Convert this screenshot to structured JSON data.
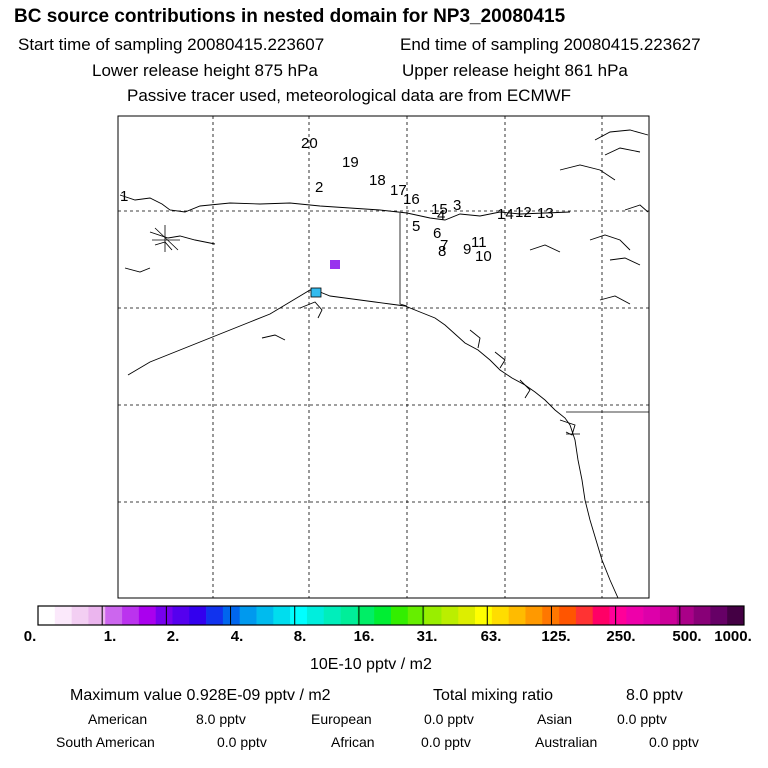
{
  "header": {
    "title": "BC  source contributions in nested domain for NP3_20080415",
    "start_time": "Start time of sampling 20080415.223607",
    "end_time": "End time of sampling 20080415.223627",
    "lower_height": "Lower release height  875 hPa",
    "upper_height": "Upper release height  861 hPa",
    "tracer_note": "Passive tracer used, meteorological data are from ECMWF"
  },
  "trajectory_labels": [
    "1",
    "2",
    "3",
    "4",
    "5",
    "6",
    "7",
    "8",
    "9",
    "10",
    "11",
    "12",
    "13",
    "14",
    "15",
    "16",
    "17",
    "18",
    "19",
    "20"
  ],
  "colorbar": {
    "tick_labels": [
      "0.",
      "1.",
      "2.",
      "4.",
      "8.",
      "16.",
      "31.",
      "63.",
      "125.",
      "250.",
      "500.",
      "1000."
    ],
    "unit_label": "10E-10 pptv / m2",
    "colors": [
      "#ffffff",
      "#fbe9fb",
      "#f3cff3",
      "#ebb5ee",
      "#cc66ee",
      "#bb33ee",
      "#aa00ee",
      "#7700ee",
      "#5500ee",
      "#3300ee",
      "#1133ee",
      "#0066ee",
      "#0099ee",
      "#00bbee",
      "#00ddee",
      "#00ffff",
      "#00eedd",
      "#00eebb",
      "#00ee99",
      "#00ee66",
      "#00ee33",
      "#33ee00",
      "#66ee00",
      "#99ee00",
      "#bbee00",
      "#ddee00",
      "#ffff00",
      "#ffdd00",
      "#ffbb00",
      "#ff9900",
      "#ff7700",
      "#ff5500",
      "#ff3333",
      "#ff0066",
      "#ff0099",
      "#ee00aa",
      "#dd00aa",
      "#cc0099",
      "#aa0088",
      "#880077",
      "#660066",
      "#440044"
    ]
  },
  "stats": {
    "max_value": "Maximum value  0.928E-09 pptv / m2",
    "total_mixing": "Total mixing ratio",
    "total_value": "8.0 pptv",
    "american_label": "American",
    "american_value": "8.0 pptv",
    "european_label": "European",
    "european_value": "0.0 pptv",
    "asian_label": "Asian",
    "asian_value": "0.0 pptv",
    "south_american_label": "South American",
    "south_american_value": "0.0 pptv",
    "african_label": "African",
    "african_value": "0.0 pptv",
    "australian_label": "Australian",
    "australian_value": "0.0 pptv"
  }
}
